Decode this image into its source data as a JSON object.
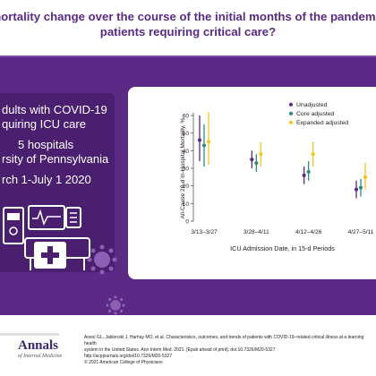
{
  "header": {
    "question_line1": "mortality change over the course of the initial months of the pandemic",
    "question_line2": "patients requiring critical care?"
  },
  "left_panel": {
    "line1": "dults with COVID-19",
    "line2": "quiring ICU care",
    "line3": "5 hospitals",
    "line4": "rsity of Pennsylvania",
    "line5": "rch 1-July 1 2020"
  },
  "colors": {
    "purple": "#5b2a86",
    "dark_purple": "#4a1f6f",
    "unadjusted": "#5b2a86",
    "core_adjusted": "#2e8b80",
    "expanded_adjusted": "#f5c518"
  },
  "icons": [
    "monitor-icon",
    "ventilator-icon",
    "hospital-bed-icon",
    "medical-kit-icon",
    "virus-icon"
  ],
  "chart_data": {
    "type": "scatter",
    "title": "",
    "xlabel": "ICU Admission Date, in 15-d Periods",
    "ylabel": "All-Cause 28-d In-Hospital Mortality, %",
    "ylim": [
      0,
      60
    ],
    "yticks": [
      0,
      10,
      20,
      30,
      40,
      50,
      60
    ],
    "categories": [
      "3/13–3/27",
      "3/28–4/11",
      "4/12–4/26",
      "4/27–5/11"
    ],
    "legend_position": "top-right",
    "series": [
      {
        "name": "Unadjusted",
        "color": "#5b2a86",
        "values": [
          46,
          35,
          26,
          18
        ],
        "lower": [
          34,
          30,
          21,
          13
        ],
        "upper": [
          60,
          40,
          31,
          23
        ]
      },
      {
        "name": "Core adjusted",
        "color": "#2e8b80",
        "values": [
          43,
          33,
          28,
          19
        ],
        "lower": [
          31,
          28,
          23,
          14
        ],
        "upper": [
          55,
          38,
          34,
          24
        ]
      },
      {
        "name": "Expanded adjusted",
        "color": "#f5c518",
        "values": [
          45,
          38,
          38,
          25
        ],
        "lower": [
          32,
          31,
          31,
          18
        ],
        "upper": [
          62,
          45,
          45,
          33
        ]
      }
    ]
  },
  "footer": {
    "logo": "Annals",
    "logo_sub": "of Internal Medicine",
    "citation1": "Anesi GL, Jablonski J, Harhay MO, et al. Characteristics, outcomes, and trends of patients with COVID-19–related critical illness at a learning health",
    "citation2": "system in the United States. Ann Intern Med. 2021. [Epub ahead of print]. doi:10.7326/M20-5327",
    "citation3": "http://acpjournals.org/doi/10.7326/M20-5327",
    "copyright": "© 2021 American College of Physicians"
  }
}
